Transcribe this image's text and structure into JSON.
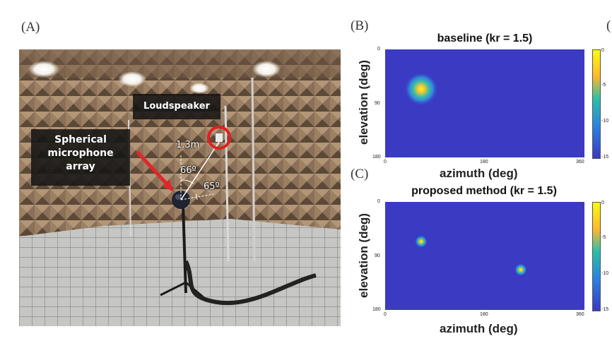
{
  "panel_labels": {
    "a": "(A)",
    "b": "(B)",
    "c": "(C)",
    "d_partial": "("
  },
  "photo": {
    "callout_loudspeaker": "Loudspeaker",
    "callout_array_line1": "Spherical",
    "callout_array_line2": "microphone",
    "callout_array_line3": "array",
    "distance": "1.3m",
    "angle_elevation": "66º",
    "angle_azimuth": "65º"
  },
  "chart_data": [
    {
      "type": "heatmap",
      "title": "baseline (kr = 1.5)",
      "xlabel": "azimuth (deg)",
      "ylabel": "elevation (deg)",
      "xlim": [
        0,
        360
      ],
      "ylim": [
        0,
        180
      ],
      "x_ticks": [
        "0",
        "180",
        "360"
      ],
      "y_ticks": [
        "0",
        "90",
        "180"
      ],
      "colorbar_ticks": [
        "0",
        "-5",
        "-10",
        "-15"
      ],
      "peaks": [
        {
          "azimuth": 65,
          "elevation": 66,
          "spread": "wide"
        }
      ]
    },
    {
      "type": "heatmap",
      "title": "proposed method (kr = 1.5)",
      "xlabel": "azimuth (deg)",
      "ylabel": "elevation (deg)",
      "xlim": [
        0,
        360
      ],
      "ylim": [
        0,
        180
      ],
      "x_ticks": [
        "0",
        "180",
        "360"
      ],
      "y_ticks": [
        "0",
        "90",
        "180"
      ],
      "colorbar_ticks": [
        "0",
        "-5",
        "-10",
        "-15"
      ],
      "peaks": [
        {
          "azimuth": 65,
          "elevation": 66,
          "spread": "narrow"
        },
        {
          "azimuth": 245,
          "elevation": 113,
          "spread": "narrow"
        }
      ]
    }
  ]
}
